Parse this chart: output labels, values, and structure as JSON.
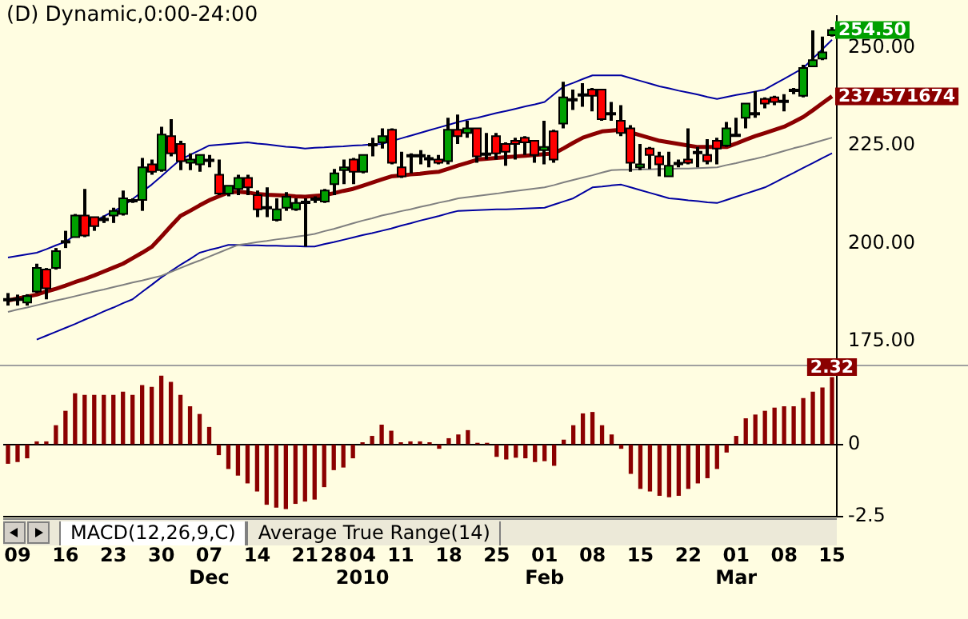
{
  "chart_data": [
    {
      "type": "candlestick",
      "title": "(D) Dynamic,0:00-24:00",
      "marker": "none",
      "tick_labels": "y",
      "ohlc": [
        [
          185.8,
          187.3,
          184.1,
          185.6
        ],
        [
          185.9,
          186.9,
          184.1,
          185.5
        ],
        [
          184.9,
          187.0,
          184.1,
          186.5
        ],
        [
          187.7,
          194.8,
          187.3,
          193.7
        ],
        [
          193.3,
          193.7,
          185.7,
          188.5
        ],
        [
          193.7,
          198.8,
          193.3,
          198.0
        ],
        [
          200.2,
          203.2,
          198.8,
          200.6
        ],
        [
          201.6,
          207.5,
          201.6,
          207.1
        ],
        [
          207.1,
          213.9,
          201.6,
          202.0
        ],
        [
          206.7,
          206.7,
          203.2,
          204.4
        ],
        [
          206.0,
          207.1,
          205.2,
          206.3
        ],
        [
          207.1,
          209.1,
          205.2,
          208.3
        ],
        [
          207.5,
          213.5,
          207.1,
          211.5
        ],
        [
          210.7,
          211.5,
          210.3,
          211.1
        ],
        [
          211.1,
          221.8,
          208.3,
          219.4
        ],
        [
          220.2,
          221.4,
          217.5,
          218.3
        ],
        [
          218.7,
          229.8,
          218.3,
          227.8
        ],
        [
          227.4,
          231.7,
          222.2,
          223.0
        ],
        [
          225.4,
          226.2,
          218.7,
          221.0
        ],
        [
          220.6,
          223.0,
          218.7,
          221.4
        ],
        [
          220.2,
          222.6,
          218.3,
          222.6
        ],
        [
          221.4,
          222.6,
          219.4,
          221.0
        ],
        [
          217.5,
          221.4,
          212.3,
          212.7
        ],
        [
          212.7,
          214.7,
          212.0,
          214.7
        ],
        [
          213.9,
          217.5,
          212.3,
          216.7
        ],
        [
          216.7,
          217.5,
          212.3,
          214.3
        ],
        [
          212.3,
          213.5,
          206.7,
          208.7
        ],
        [
          209.3,
          214.3,
          206.7,
          209.1
        ],
        [
          206.0,
          211.5,
          205.6,
          208.7
        ],
        [
          209.1,
          213.1,
          208.3,
          211.9
        ],
        [
          208.7,
          211.5,
          208.3,
          210.3
        ],
        [
          210.3,
          211.5,
          199.2,
          210.7
        ],
        [
          211.1,
          212.0,
          210.3,
          211.5
        ],
        [
          210.7,
          213.9,
          210.3,
          213.5
        ],
        [
          215.1,
          219.0,
          212.3,
          217.9
        ],
        [
          218.7,
          221.4,
          215.1,
          219.4
        ],
        [
          221.4,
          221.8,
          215.1,
          218.3
        ],
        [
          218.3,
          222.6,
          217.9,
          222.6
        ],
        [
          225.0,
          227.0,
          222.2,
          225.4
        ],
        [
          225.8,
          229.4,
          224.2,
          227.4
        ],
        [
          229.0,
          229.4,
          220.2,
          220.6
        ],
        [
          219.4,
          223.4,
          216.7,
          217.1
        ],
        [
          222.6,
          223.0,
          217.9,
          222.2
        ],
        [
          222.2,
          223.8,
          220.2,
          222.6
        ],
        [
          221.4,
          222.6,
          219.4,
          221.8
        ],
        [
          221.4,
          222.6,
          220.2,
          220.6
        ],
        [
          221.0,
          232.1,
          220.2,
          229.0
        ],
        [
          229.0,
          232.9,
          225.4,
          227.4
        ],
        [
          228.2,
          231.3,
          227.0,
          229.4
        ],
        [
          229.4,
          229.4,
          220.6,
          222.2
        ],
        [
          222.6,
          228.2,
          221.4,
          223.0
        ],
        [
          227.4,
          228.2,
          221.4,
          223.0
        ],
        [
          225.4,
          225.8,
          219.8,
          223.4
        ],
        [
          226.2,
          227.0,
          221.4,
          225.4
        ],
        [
          227.0,
          227.4,
          222.6,
          225.8
        ],
        [
          226.2,
          226.2,
          220.6,
          222.6
        ],
        [
          223.8,
          231.3,
          220.2,
          224.6
        ],
        [
          228.6,
          229.0,
          220.6,
          221.4
        ],
        [
          230.6,
          241.3,
          229.4,
          237.3
        ],
        [
          236.5,
          239.3,
          234.1,
          236.9
        ],
        [
          237.7,
          240.9,
          234.9,
          238.1
        ],
        [
          239.3,
          239.7,
          233.7,
          237.7
        ],
        [
          239.3,
          239.3,
          231.3,
          231.7
        ],
        [
          233.3,
          236.1,
          231.3,
          232.9
        ],
        [
          231.3,
          235.3,
          227.4,
          228.2
        ],
        [
          229.4,
          230.2,
          218.3,
          220.6
        ],
        [
          219.4,
          225.4,
          218.7,
          220.2
        ],
        [
          224.2,
          224.6,
          219.0,
          222.6
        ],
        [
          222.2,
          223.4,
          217.1,
          220.2
        ],
        [
          217.1,
          223.4,
          217.1,
          219.8
        ],
        [
          220.2,
          221.4,
          219.4,
          220.6
        ],
        [
          221.4,
          229.4,
          220.2,
          220.6
        ],
        [
          223.0,
          224.6,
          219.4,
          223.4
        ],
        [
          222.6,
          226.6,
          220.2,
          221.0
        ],
        [
          226.2,
          227.0,
          220.2,
          224.2
        ],
        [
          225.0,
          231.0,
          224.6,
          229.4
        ],
        [
          227.4,
          232.1,
          227.4,
          227.8
        ],
        [
          232.1,
          235.7,
          229.4,
          235.7
        ],
        [
          232.9,
          238.9,
          232.1,
          233.3
        ],
        [
          236.9,
          237.3,
          234.5,
          235.7
        ],
        [
          237.3,
          237.7,
          235.3,
          236.1
        ],
        [
          236.1,
          238.1,
          233.7,
          236.5
        ],
        [
          238.9,
          239.7,
          238.1,
          239.3
        ],
        [
          237.7,
          245.6,
          237.3,
          244.8
        ],
        [
          245.2,
          254.4,
          245.2,
          246.8
        ],
        [
          247.2,
          252.8,
          246.8,
          248.8
        ],
        [
          253.2,
          255.2,
          252.8,
          254.5
        ]
      ],
      "value_labels": [
        null,
        null,
        null,
        null,
        null,
        null,
        null,
        null,
        null,
        null,
        null,
        null,
        null,
        null,
        null,
        null,
        null,
        null,
        null,
        null,
        null,
        null,
        null,
        null,
        null,
        null,
        null,
        null,
        null,
        null,
        null,
        null,
        null,
        null,
        null,
        null,
        null,
        null,
        null,
        null,
        null,
        null,
        null,
        null,
        null,
        null,
        null,
        null,
        null,
        null,
        null,
        null,
        null,
        null,
        null,
        null,
        null,
        null,
        null,
        null,
        null,
        null,
        null,
        null,
        null,
        null,
        null,
        null,
        null,
        null,
        null,
        null,
        null,
        null,
        null,
        null,
        null,
        null,
        null,
        null,
        null,
        null,
        null,
        null,
        null,
        null,
        "254.50"
      ],
      "series": [
        {
          "type": "line",
          "color": "#8b0000",
          "values": [
            185.4,
            185.9,
            186.4,
            186.9,
            187.7,
            188.4,
            189.2,
            190.1,
            190.9,
            191.8,
            192.8,
            193.8,
            194.8,
            196.2,
            197.6,
            199.1,
            201.7,
            204.4,
            207.0,
            208.3,
            209.7,
            211.0,
            212.0,
            213.0,
            213.2,
            213.0,
            212.6,
            212.4,
            212.3,
            212.2,
            212.0,
            211.9,
            212.1,
            212.3,
            212.8,
            213.4,
            213.9,
            214.7,
            215.5,
            216.3,
            217.1,
            217.3,
            217.6,
            217.8,
            218.1,
            218.3,
            219.1,
            219.9,
            220.6,
            221.4,
            221.6,
            221.8,
            222.0,
            222.2,
            222.4,
            222.6,
            222.8,
            223.0,
            224.3,
            225.7,
            227.0,
            227.8,
            228.6,
            228.8,
            229.0,
            228.3,
            227.6,
            226.9,
            226.2,
            225.8,
            225.4,
            225.0,
            224.6,
            224.6,
            224.6,
            224.6,
            225.5,
            226.5,
            227.4,
            228.2,
            229.0,
            229.8,
            231.0,
            232.3,
            234.0,
            235.8,
            237.571674
          ],
          "value_labels": [
            null,
            null,
            null,
            null,
            null,
            null,
            null,
            null,
            null,
            null,
            null,
            null,
            null,
            null,
            null,
            null,
            null,
            null,
            null,
            null,
            null,
            null,
            null,
            null,
            null,
            null,
            null,
            null,
            null,
            null,
            null,
            null,
            null,
            null,
            null,
            null,
            null,
            null,
            null,
            null,
            null,
            null,
            null,
            null,
            null,
            null,
            null,
            null,
            null,
            null,
            null,
            null,
            null,
            null,
            null,
            null,
            null,
            null,
            null,
            null,
            null,
            null,
            null,
            null,
            null,
            null,
            null,
            null,
            null,
            null,
            null,
            null,
            null,
            null,
            null,
            null,
            null,
            null,
            null,
            null,
            null,
            null,
            null,
            null,
            null,
            null,
            "237.571674"
          ]
        },
        {
          "type": "line",
          "color": "#808080",
          "values": [
            182.5,
            183.1,
            183.6,
            184.2,
            184.8,
            185.4,
            185.9,
            186.5,
            187.1,
            187.7,
            188.2,
            188.8,
            189.4,
            190.0,
            190.5,
            191.1,
            191.7,
            192.7,
            193.7,
            194.7,
            195.6,
            196.6,
            197.6,
            198.6,
            199.6,
            199.9,
            200.3,
            200.6,
            201.0,
            201.3,
            201.7,
            202.0,
            202.4,
            203.1,
            203.7,
            204.4,
            205.1,
            205.8,
            206.4,
            207.1,
            207.6,
            208.2,
            208.7,
            209.3,
            209.8,
            210.4,
            210.9,
            211.5,
            211.8,
            212.1,
            212.4,
            212.7,
            213.1,
            213.4,
            213.7,
            214.0,
            214.3,
            214.9,
            215.6,
            216.2,
            216.8,
            217.4,
            218.1,
            218.7,
            218.8,
            218.8,
            218.9,
            218.9,
            219.0,
            219.0,
            219.1,
            219.1,
            219.2,
            219.3,
            219.4,
            220.0,
            220.5,
            221.1,
            221.6,
            222.2,
            222.9,
            223.6,
            224.3,
            224.9,
            225.6,
            226.3,
            227.0
          ]
        },
        {
          "type": "line",
          "color": "#0000a0",
          "values": [
            196.4,
            196.8,
            197.2,
            197.6,
            198.5,
            199.5,
            200.4,
            202.1,
            203.9,
            205.6,
            206.9,
            208.2,
            209.5,
            211.3,
            213.2,
            215.0,
            217.1,
            219.3,
            221.4,
            222.6,
            223.8,
            225.0,
            225.2,
            225.4,
            225.6,
            225.8,
            225.5,
            225.3,
            225.0,
            224.7,
            224.5,
            224.2,
            224.4,
            224.5,
            224.7,
            224.8,
            225.0,
            225.1,
            225.3,
            225.4,
            226.1,
            226.8,
            227.5,
            228.2,
            228.9,
            229.6,
            230.3,
            231.0,
            231.6,
            232.1,
            232.7,
            233.3,
            233.8,
            234.4,
            235.0,
            235.5,
            236.1,
            238.1,
            240.1,
            241.0,
            242.0,
            242.9,
            242.9,
            242.9,
            242.9,
            242.2,
            241.5,
            240.8,
            240.1,
            239.6,
            239.0,
            238.5,
            238.0,
            237.4,
            236.9,
            237.4,
            237.9,
            238.3,
            238.8,
            239.3,
            240.7,
            242.0,
            243.4,
            244.8,
            247.2,
            249.6,
            252.0
          ]
        },
        {
          "type": "line",
          "color": "#0000a0",
          "values": [
            null,
            null,
            null,
            175.4,
            176.4,
            177.4,
            178.4,
            179.4,
            180.5,
            181.5,
            182.6,
            183.6,
            184.7,
            185.7,
            187.6,
            189.4,
            191.3,
            192.9,
            194.5,
            196.0,
            197.6,
            198.3,
            198.9,
            199.6,
            199.6,
            199.5,
            199.5,
            199.4,
            199.4,
            199.3,
            199.3,
            199.2,
            199.2,
            199.8,
            200.3,
            200.9,
            201.5,
            202.1,
            202.6,
            203.2,
            203.8,
            204.5,
            205.1,
            205.8,
            206.4,
            207.0,
            207.7,
            208.3,
            208.4,
            208.5,
            208.6,
            208.7,
            208.7,
            208.8,
            208.9,
            209.0,
            209.1,
            209.9,
            210.7,
            211.5,
            212.9,
            214.3,
            214.5,
            214.8,
            215.0,
            214.3,
            213.6,
            212.9,
            212.2,
            211.5,
            211.3,
            211.0,
            210.8,
            210.5,
            210.3,
            211.1,
            211.9,
            212.7,
            213.5,
            214.3,
            215.5,
            216.8,
            218.0,
            219.3,
            220.5,
            221.8,
            223.0
          ]
        }
      ],
      "ylim": [
        169,
        258
      ],
      "yticks": [
        {
          "value": 175,
          "label": "175.00"
        },
        {
          "value": 200,
          "label": "200.00"
        },
        {
          "value": 225,
          "label": "225.00"
        },
        {
          "value": 250,
          "label": "250.00"
        }
      ]
    },
    {
      "type": "bar",
      "color": "#8b0000",
      "grid": "y",
      "annotations": [
        "MACD(12,26,9,C)",
        "Average True Range(14)"
      ],
      "categories": [
        null,
        "09",
        null,
        null,
        null,
        null,
        "16",
        null,
        null,
        null,
        null,
        "23",
        null,
        null,
        null,
        null,
        "30",
        null,
        null,
        null,
        null,
        "07\nDec",
        null,
        null,
        null,
        null,
        "14",
        null,
        null,
        null,
        null,
        "21",
        null,
        null,
        "28",
        null,
        null,
        "04\n2010",
        null,
        null,
        null,
        "11",
        null,
        null,
        null,
        null,
        "18",
        null,
        null,
        null,
        null,
        "25",
        null,
        null,
        null,
        null,
        "01\nFeb",
        null,
        null,
        null,
        null,
        "08",
        null,
        null,
        null,
        null,
        "15",
        null,
        null,
        null,
        null,
        "22",
        null,
        null,
        null,
        null,
        "01\nMar",
        null,
        null,
        null,
        null,
        "08",
        null,
        null,
        null,
        null,
        "15"
      ],
      "values": [
        -0.65,
        -0.59,
        -0.46,
        0.09,
        0.09,
        0.65,
        1.15,
        1.76,
        1.7,
        1.7,
        1.7,
        1.7,
        1.81,
        1.7,
        2.04,
        1.98,
        2.37,
        2.15,
        1.7,
        1.31,
        1.04,
        0.59,
        -0.35,
        -0.83,
        -1.06,
        -1.33,
        -1.61,
        -2.07,
        -2.17,
        -2.22,
        -2.04,
        -1.96,
        -1.89,
        -1.46,
        -0.87,
        -0.78,
        -0.46,
        0.06,
        0.28,
        0.67,
        0.46,
        0.06,
        0.09,
        0.09,
        0.06,
        -0.13,
        0.2,
        0.33,
        0.48,
        0.04,
        0.04,
        -0.41,
        -0.5,
        -0.44,
        -0.46,
        -0.59,
        -0.56,
        -0.72,
        0.15,
        0.65,
        1.06,
        1.11,
        0.65,
        0.33,
        -0.13,
        -1.0,
        -1.52,
        -1.61,
        -1.76,
        -1.81,
        -1.76,
        -1.52,
        -1.33,
        -1.15,
        -0.83,
        -0.26,
        0.28,
        0.89,
        1.02,
        1.15,
        1.26,
        1.31,
        1.31,
        1.59,
        1.81,
        1.96,
        2.32
      ],
      "value_labels": [
        null,
        null,
        null,
        null,
        null,
        null,
        null,
        null,
        null,
        null,
        null,
        null,
        null,
        null,
        null,
        null,
        null,
        null,
        null,
        null,
        null,
        null,
        null,
        null,
        null,
        null,
        null,
        null,
        null,
        null,
        null,
        null,
        null,
        null,
        null,
        null,
        null,
        null,
        null,
        null,
        null,
        null,
        null,
        null,
        null,
        null,
        null,
        null,
        null,
        null,
        null,
        null,
        null,
        null,
        null,
        null,
        null,
        null,
        null,
        null,
        null,
        null,
        null,
        null,
        null,
        null,
        null,
        null,
        null,
        null,
        null,
        null,
        null,
        null,
        null,
        null,
        null,
        null,
        null,
        null,
        null,
        null,
        null,
        null,
        null,
        null,
        "2.32"
      ],
      "ylim": [
        -2.5,
        2.7
      ],
      "yticks": [
        {
          "value": -2.5,
          "label": "-2.5"
        },
        0
      ]
    }
  ]
}
